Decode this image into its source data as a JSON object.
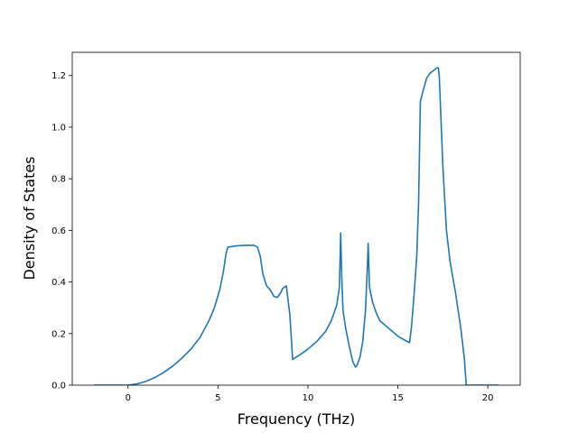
{
  "chart_data": {
    "type": "line",
    "title": "",
    "xlabel": "Frequency (THz)",
    "ylabel": "Density of States",
    "xlim": [
      -3.1,
      21.8
    ],
    "ylim": [
      0.0,
      1.29
    ],
    "xticks": [
      0,
      5,
      10,
      15,
      20
    ],
    "xtick_labels": [
      "0",
      "5",
      "10",
      "15",
      "20"
    ],
    "yticks": [
      0.0,
      0.2,
      0.4,
      0.6,
      0.8,
      1.0,
      1.2
    ],
    "ytick_labels": [
      "0.0",
      "0.2",
      "0.4",
      "0.6",
      "0.8",
      "1.0",
      "1.2"
    ],
    "grid": false,
    "series": [
      {
        "color": "#1f77b4",
        "x": [
          -1.9,
          -1.0,
          0.0,
          0.5,
          1.0,
          1.5,
          2.0,
          2.5,
          3.0,
          3.5,
          4.0,
          4.5,
          4.8,
          5.1,
          5.3,
          5.45,
          5.55,
          6.0,
          6.5,
          7.0,
          7.2,
          7.35,
          7.5,
          7.7,
          7.9,
          8.1,
          8.3,
          8.5,
          8.6,
          8.8,
          9.0,
          9.15,
          9.6,
          10.0,
          10.5,
          11.0,
          11.3,
          11.6,
          11.75,
          11.82,
          11.88,
          11.95,
          12.1,
          12.3,
          12.5,
          12.65,
          12.75,
          12.9,
          13.05,
          13.2,
          13.3,
          13.35,
          13.42,
          13.6,
          13.8,
          14.0,
          14.5,
          15.0,
          15.5,
          15.65,
          15.75,
          15.9,
          16.05,
          16.15,
          16.25,
          16.4,
          16.6,
          16.8,
          17.0,
          17.15,
          17.25,
          17.3,
          17.5,
          17.7,
          17.9,
          18.2,
          18.5,
          18.7,
          18.8,
          19.5,
          20.0,
          20.6
        ],
        "y": [
          0.0,
          0.0,
          0.0,
          0.005,
          0.015,
          0.03,
          0.05,
          0.075,
          0.105,
          0.14,
          0.185,
          0.25,
          0.3,
          0.37,
          0.44,
          0.51,
          0.535,
          0.54,
          0.542,
          0.542,
          0.535,
          0.5,
          0.43,
          0.385,
          0.37,
          0.345,
          0.34,
          0.36,
          0.375,
          0.385,
          0.27,
          0.1,
          0.12,
          0.14,
          0.17,
          0.21,
          0.25,
          0.31,
          0.38,
          0.59,
          0.42,
          0.29,
          0.22,
          0.15,
          0.09,
          0.07,
          0.08,
          0.11,
          0.17,
          0.29,
          0.45,
          0.55,
          0.38,
          0.32,
          0.28,
          0.25,
          0.22,
          0.19,
          0.17,
          0.165,
          0.22,
          0.35,
          0.5,
          0.7,
          1.1,
          1.14,
          1.19,
          1.21,
          1.22,
          1.23,
          1.23,
          1.2,
          0.85,
          0.6,
          0.48,
          0.36,
          0.22,
          0.1,
          0.0,
          0.0,
          0.0,
          0.0
        ]
      }
    ]
  }
}
